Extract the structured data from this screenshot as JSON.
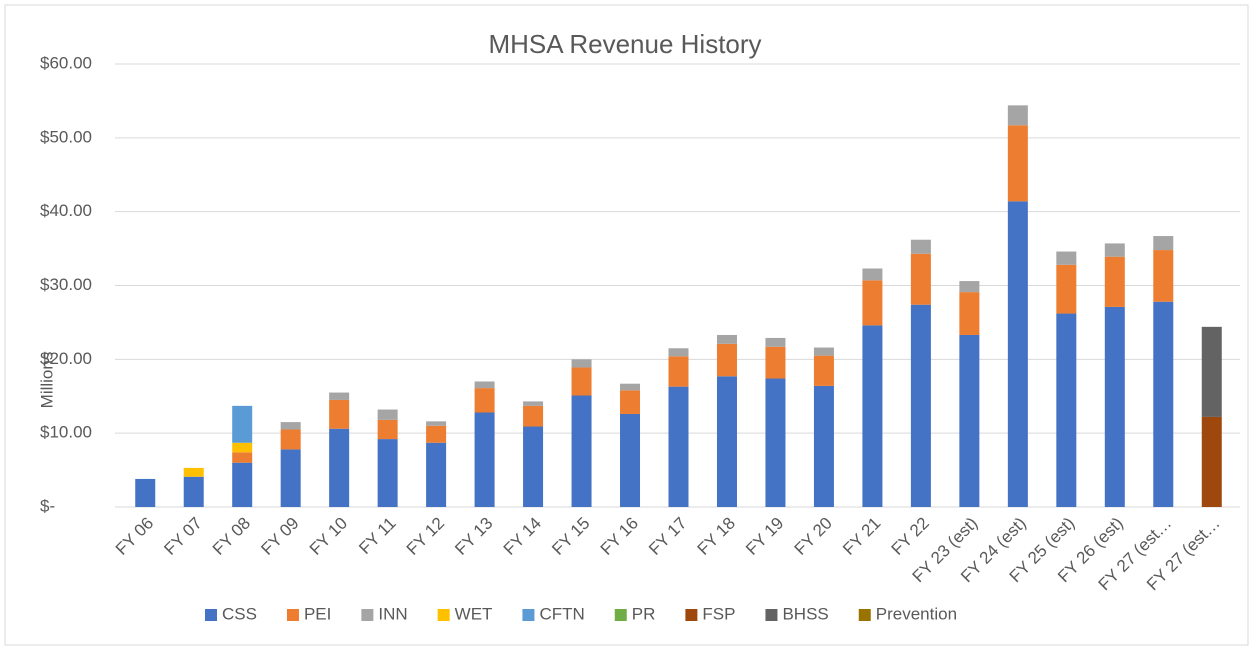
{
  "chart_data": {
    "type": "bar",
    "stacked": true,
    "title": "MHSA Revenue History",
    "y_label": "Millions",
    "categories": [
      "FY 06",
      "FY 07",
      "FY 08",
      "FY 09",
      "FY 10",
      "FY 11",
      "FY 12",
      "FY 13",
      "FY 14",
      "FY 15",
      "FY 16",
      "FY 17",
      "FY 18",
      "FY 19",
      "FY 20",
      "FY 21",
      "FY 22",
      "FY 23 (est)",
      "FY 24 (est)",
      "FY 25 (est)",
      "FY 26 (est)",
      "FY 27 (est…",
      "FY 27 (est…"
    ],
    "series": [
      {
        "name": "CSS",
        "color": "#4472c4",
        "values": [
          3.8,
          4.1,
          6.0,
          7.8,
          10.6,
          9.2,
          8.7,
          12.8,
          10.9,
          15.1,
          12.6,
          16.3,
          17.7,
          17.4,
          16.4,
          24.6,
          27.4,
          23.3,
          41.4,
          26.2,
          27.1,
          27.8,
          null
        ]
      },
      {
        "name": "PEI",
        "color": "#ed7d31",
        "values": [
          null,
          null,
          1.4,
          2.7,
          3.9,
          2.6,
          2.3,
          3.3,
          2.8,
          3.8,
          3.2,
          4.1,
          4.4,
          4.3,
          4.1,
          6.1,
          6.9,
          5.8,
          10.3,
          6.6,
          6.8,
          7.0,
          null
        ]
      },
      {
        "name": "INN",
        "color": "#a5a5a5",
        "values": [
          null,
          null,
          null,
          1.0,
          1.0,
          1.4,
          0.6,
          0.9,
          0.6,
          1.1,
          0.9,
          1.1,
          1.2,
          1.2,
          1.1,
          1.6,
          1.9,
          1.5,
          2.7,
          1.8,
          1.8,
          1.9,
          null
        ]
      },
      {
        "name": "WET",
        "color": "#ffc000",
        "values": [
          null,
          1.2,
          1.3,
          null,
          null,
          null,
          null,
          null,
          null,
          null,
          null,
          null,
          null,
          null,
          null,
          null,
          null,
          null,
          null,
          null,
          null,
          null,
          null
        ]
      },
      {
        "name": "CFTN",
        "color": "#5b9bd5",
        "values": [
          null,
          null,
          5.0,
          null,
          null,
          null,
          null,
          null,
          null,
          null,
          null,
          null,
          null,
          null,
          null,
          null,
          null,
          null,
          null,
          null,
          null,
          null,
          null
        ]
      },
      {
        "name": "PR",
        "color": "#70ad47",
        "values": [
          null,
          null,
          null,
          null,
          null,
          null,
          null,
          null,
          null,
          null,
          null,
          null,
          null,
          null,
          null,
          null,
          null,
          null,
          null,
          null,
          null,
          null,
          null
        ]
      },
      {
        "name": "FSP",
        "color": "#9e480e",
        "values": [
          null,
          null,
          null,
          null,
          null,
          null,
          null,
          null,
          null,
          null,
          null,
          null,
          null,
          null,
          null,
          null,
          null,
          null,
          null,
          null,
          null,
          null,
          12.2
        ]
      },
      {
        "name": "BHSS",
        "color": "#636363",
        "values": [
          null,
          null,
          null,
          null,
          null,
          null,
          null,
          null,
          null,
          null,
          null,
          null,
          null,
          null,
          null,
          null,
          null,
          null,
          null,
          null,
          null,
          null,
          12.2
        ]
      },
      {
        "name": "Prevention",
        "color": "#997300",
        "values": [
          null,
          null,
          null,
          null,
          null,
          null,
          null,
          null,
          null,
          null,
          null,
          null,
          null,
          null,
          null,
          null,
          null,
          null,
          null,
          null,
          null,
          null,
          null
        ]
      }
    ],
    "ylim": [
      0,
      60
    ],
    "yticks": [
      {
        "value": 0,
        "label": "$-"
      },
      {
        "value": 10,
        "label": "$10.00"
      },
      {
        "value": 20,
        "label": "$20.00"
      },
      {
        "value": 30,
        "label": "$30.00"
      },
      {
        "value": 40,
        "label": "$40.00"
      },
      {
        "value": 50,
        "label": "$50.00"
      },
      {
        "value": 60,
        "label": "$60.00"
      }
    ],
    "grid": true,
    "legend": "bottom"
  }
}
